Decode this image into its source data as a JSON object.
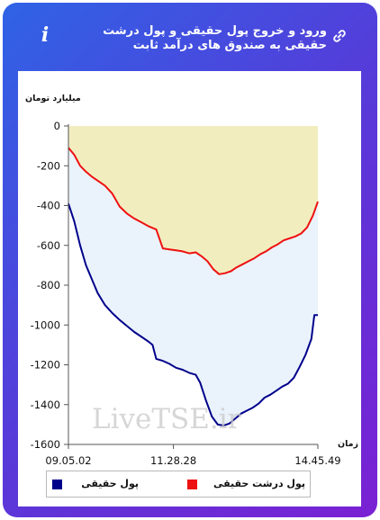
{
  "header": {
    "title": "ورود و خروج پول حقیقی و پول درشت حقیقی به صندوق های درآمد ثابت",
    "info_icon": "info-icon",
    "link_icon": "link-icon",
    "info_glyph": "i"
  },
  "watermark": "LiveTSE.ir",
  "colors": {
    "card_gradient": [
      "#2f63e6",
      "#7a21d4"
    ],
    "real_money": "#00008b",
    "big_real_money": "#ee1111",
    "fill_upper": "#f2edbf",
    "fill_lower": "#eaf3fb"
  },
  "chart_data": {
    "type": "area",
    "ylabel": "میلیارد تومان",
    "xlabel": "زمان",
    "ylim": [
      -1600,
      0
    ],
    "yticks": [
      0,
      -200,
      -400,
      -600,
      -800,
      -1000,
      -1200,
      -1400,
      -1600
    ],
    "xlim": [
      "09:05:02",
      "14:45:49"
    ],
    "xticks": [
      "09.05.02",
      "11.28.28",
      "14.45.49"
    ],
    "grid": false,
    "legend_position": "bottom",
    "series": [
      {
        "name": "پول حقیقی",
        "color": "#00008b",
        "points": [
          [
            "09:05:02",
            -390
          ],
          [
            "09:13:00",
            -480
          ],
          [
            "09:21:00",
            -600
          ],
          [
            "09:29:00",
            -700
          ],
          [
            "09:37:00",
            -770
          ],
          [
            "09:45:00",
            -840
          ],
          [
            "09:55:00",
            -900
          ],
          [
            "10:05:00",
            -940
          ],
          [
            "10:15:00",
            -975
          ],
          [
            "10:25:00",
            -1005
          ],
          [
            "10:35:00",
            -1035
          ],
          [
            "10:45:00",
            -1060
          ],
          [
            "10:55:00",
            -1085
          ],
          [
            "11:00:00",
            -1100
          ],
          [
            "11:05:00",
            -1170
          ],
          [
            "11:14:00",
            -1180
          ],
          [
            "11:23:00",
            -1195
          ],
          [
            "11:32:00",
            -1215
          ],
          [
            "11:41:00",
            -1225
          ],
          [
            "11:50:00",
            -1240
          ],
          [
            "11:59:00",
            -1250
          ],
          [
            "12:05:00",
            -1290
          ],
          [
            "12:13:00",
            -1380
          ],
          [
            "12:21:00",
            -1460
          ],
          [
            "12:29:00",
            -1500
          ],
          [
            "12:37:00",
            -1505
          ],
          [
            "12:45:00",
            -1495
          ],
          [
            "12:53:00",
            -1470
          ],
          [
            "13:01:00",
            -1445
          ],
          [
            "13:09:00",
            -1430
          ],
          [
            "13:17:00",
            -1415
          ],
          [
            "13:25:00",
            -1395
          ],
          [
            "13:33:00",
            -1365
          ],
          [
            "13:41:00",
            -1350
          ],
          [
            "13:49:00",
            -1330
          ],
          [
            "13:57:00",
            -1310
          ],
          [
            "14:05:00",
            -1295
          ],
          [
            "14:13:00",
            -1265
          ],
          [
            "14:21:00",
            -1210
          ],
          [
            "14:29:00",
            -1150
          ],
          [
            "14:37:00",
            -1070
          ],
          [
            "14:41:00",
            -950
          ],
          [
            "14:45:49",
            -950
          ]
        ]
      },
      {
        "name": "پول درشت حقیقی",
        "color": "#ee1111",
        "points": [
          [
            "09:05:02",
            -110
          ],
          [
            "09:13:00",
            -145
          ],
          [
            "09:21:00",
            -200
          ],
          [
            "09:29:00",
            -230
          ],
          [
            "09:37:00",
            -255
          ],
          [
            "09:45:00",
            -275
          ],
          [
            "09:55:00",
            -300
          ],
          [
            "10:05:00",
            -340
          ],
          [
            "10:15:00",
            -405
          ],
          [
            "10:25:00",
            -440
          ],
          [
            "10:35:00",
            -465
          ],
          [
            "10:45:00",
            -485
          ],
          [
            "10:55:00",
            -505
          ],
          [
            "11:05:00",
            -520
          ],
          [
            "11:14:00",
            -615
          ],
          [
            "11:23:00",
            -620
          ],
          [
            "11:32:00",
            -625
          ],
          [
            "11:41:00",
            -630
          ],
          [
            "11:50:00",
            -640
          ],
          [
            "11:59:00",
            -635
          ],
          [
            "12:07:00",
            -655
          ],
          [
            "12:15:00",
            -680
          ],
          [
            "12:23:00",
            -720
          ],
          [
            "12:31:00",
            -745
          ],
          [
            "12:39:00",
            -740
          ],
          [
            "12:47:00",
            -730
          ],
          [
            "12:55:00",
            -710
          ],
          [
            "13:03:00",
            -695
          ],
          [
            "13:11:00",
            -680
          ],
          [
            "13:19:00",
            -665
          ],
          [
            "13:27:00",
            -645
          ],
          [
            "13:35:00",
            -630
          ],
          [
            "13:43:00",
            -610
          ],
          [
            "13:51:00",
            -595
          ],
          [
            "13:59:00",
            -575
          ],
          [
            "14:07:00",
            -565
          ],
          [
            "14:15:00",
            -555
          ],
          [
            "14:23:00",
            -540
          ],
          [
            "14:31:00",
            -510
          ],
          [
            "14:39:00",
            -450
          ],
          [
            "14:45:49",
            -380
          ]
        ]
      }
    ]
  }
}
